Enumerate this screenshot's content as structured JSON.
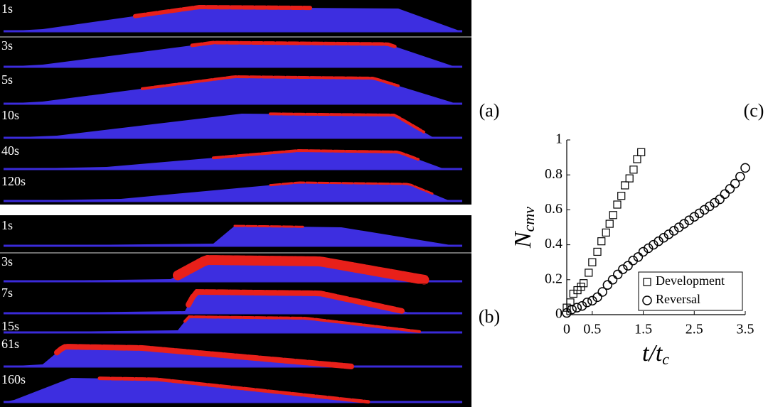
{
  "panels": {
    "a": {
      "letter": "(a)",
      "labels": [
        "1s",
        "3s",
        "5s",
        "10s",
        "40s",
        "120s"
      ]
    },
    "b": {
      "letter": "(b)",
      "labels": [
        "1s",
        "3s",
        "7s",
        "15s",
        "61s",
        "160s"
      ]
    }
  },
  "chart_data": {
    "type": "scatter",
    "letter": "(c)",
    "xlabel": "t/t",
    "xlabel_sub": "c",
    "ylabel": "N",
    "ylabel_sub": "cmv",
    "xlim": [
      0,
      3.5
    ],
    "ylim": [
      0,
      1
    ],
    "xticks": [
      0,
      0.5,
      1.5,
      2.5,
      3.5
    ],
    "yticks": [
      0,
      0.2,
      0.4,
      0.6,
      0.8,
      1
    ],
    "legend": "lower right",
    "series": [
      {
        "name": "Development",
        "marker": "square",
        "color": "#000000",
        "x": [
          0,
          0.07,
          0.13,
          0.21,
          0.28,
          0.33,
          0.43,
          0.5,
          0.6,
          0.68,
          0.77,
          0.84,
          0.91,
          0.99,
          1.07,
          1.14,
          1.23,
          1.31,
          1.38,
          1.46
        ],
        "values": [
          0.04,
          0.07,
          0.12,
          0.14,
          0.16,
          0.18,
          0.24,
          0.3,
          0.36,
          0.42,
          0.47,
          0.52,
          0.57,
          0.63,
          0.68,
          0.74,
          0.78,
          0.83,
          0.89,
          0.93
        ]
      },
      {
        "name": "Reversal",
        "marker": "circle",
        "color": "#000000",
        "x": [
          0,
          0.1,
          0.2,
          0.3,
          0.4,
          0.5,
          0.6,
          0.7,
          0.8,
          0.9,
          1.0,
          1.1,
          1.2,
          1.3,
          1.4,
          1.5,
          1.6,
          1.7,
          1.8,
          1.9,
          2.0,
          2.1,
          2.2,
          2.3,
          2.4,
          2.5,
          2.6,
          2.7,
          2.8,
          2.9,
          3.0,
          3.1,
          3.2,
          3.3,
          3.4,
          3.5
        ],
        "values": [
          0.01,
          0.03,
          0.04,
          0.05,
          0.07,
          0.08,
          0.1,
          0.13,
          0.17,
          0.2,
          0.23,
          0.26,
          0.28,
          0.31,
          0.33,
          0.36,
          0.38,
          0.4,
          0.42,
          0.44,
          0.46,
          0.48,
          0.5,
          0.52,
          0.54,
          0.56,
          0.58,
          0.6,
          0.62,
          0.64,
          0.66,
          0.69,
          0.72,
          0.75,
          0.79,
          0.84
        ]
      }
    ]
  }
}
